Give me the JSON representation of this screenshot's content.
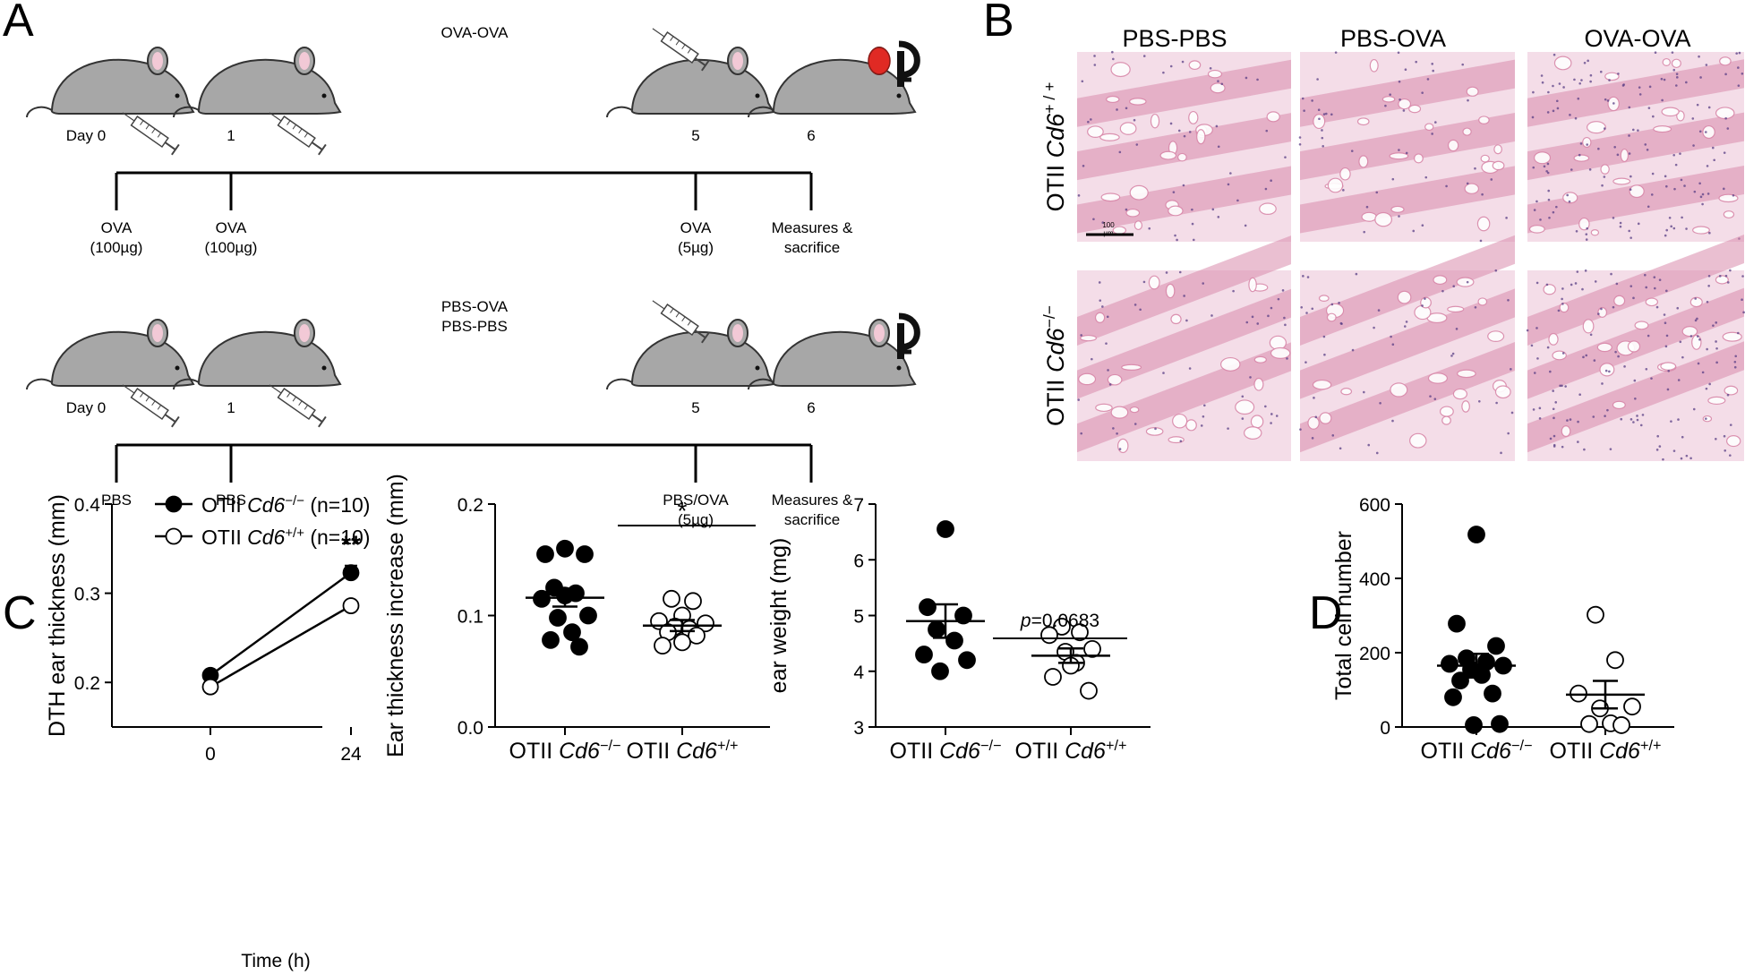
{
  "panels": {
    "a": "A",
    "b": "B",
    "c": "C",
    "d": "D"
  },
  "schematic": {
    "top": {
      "group_label": "OVA-OVA",
      "days": [
        "Day 0",
        "1",
        "5",
        "6"
      ],
      "treatments": [
        "OVA\n(100µg)",
        "OVA\n(100µg)",
        "OVA\n(5µg)",
        "Measures &\nsacrifice"
      ]
    },
    "bottom": {
      "group_label": "PBS-OVA\nPBS-PBS",
      "days": [
        "Day 0",
        "1",
        "5",
        "6"
      ],
      "treatments": [
        "PBS",
        "PBS",
        "PBS/OVA\n(5µg)",
        "Measures &\nsacrifice"
      ]
    },
    "colors": {
      "mouse": "#a7a7a7",
      "ear": "#f2c9d6",
      "inflamed_ear": "#e02a24",
      "outline": "#333333"
    }
  },
  "histology": {
    "columns": [
      "PBS-PBS",
      "PBS-OVA",
      "OVA-OVA"
    ],
    "rows": [
      {
        "prefix": "OTII ",
        "gene": "Cd6",
        "sup": "+ / +"
      },
      {
        "prefix": "OTII ",
        "gene": "Cd6",
        "sup": "−/−"
      }
    ],
    "scale_bar": "100\nµm",
    "colors": {
      "bg": "#f4dde8",
      "stain": "#d98aab",
      "nuclei": "#5a3f86"
    }
  },
  "chart_data": [
    {
      "type": "line",
      "ylabel": "DTH ear thickness (mm)",
      "xlabel": "Time (h)",
      "x": [
        0,
        24
      ],
      "xticks": [
        "0",
        "24"
      ],
      "ylim": [
        0.15,
        0.4
      ],
      "yticks": [
        0.2,
        0.3,
        0.4
      ],
      "ytick_labels": [
        "0.2",
        "0.3",
        "0.4"
      ],
      "legend": [
        {
          "prefix": "OTII ",
          "gene": "Cd6",
          "sup": "−/−",
          "suffix": " (n=10)",
          "marker": "filled"
        },
        {
          "prefix": "OTII ",
          "gene": "Cd6",
          "sup": "+/+",
          "suffix": " (n=10)",
          "marker": "open"
        }
      ],
      "series": [
        {
          "values": [
            0.208,
            0.323
          ],
          "error": [
            0,
            0.008
          ],
          "marker": "filled"
        },
        {
          "values": [
            0.195,
            0.286
          ],
          "error": [
            0,
            0.0
          ],
          "marker": "open"
        }
      ],
      "annotation": "**"
    },
    {
      "type": "scatter",
      "ylabel": "Ear thickness increase (mm)",
      "ylim": [
        0,
        0.2
      ],
      "yticks": [
        0,
        0.1,
        0.2
      ],
      "ytick_labels": [
        "0.0",
        "0.1",
        "0.2"
      ],
      "groups": [
        {
          "prefix": "OTII ",
          "gene": "Cd6",
          "sup": "−/−",
          "marker": "filled",
          "values": [
            0.16,
            0.155,
            0.155,
            0.125,
            0.12,
            0.118,
            0.115,
            0.1,
            0.098,
            0.085,
            0.078,
            0.072
          ],
          "mean": 0.116,
          "sem": 0.008
        },
        {
          "prefix": "OTII ",
          "gene": "Cd6",
          "sup": "+/+",
          "marker": "open",
          "values": [
            0.115,
            0.113,
            0.1,
            0.095,
            0.093,
            0.09,
            0.088,
            0.085,
            0.082,
            0.076,
            0.073
          ],
          "mean": 0.091,
          "sem": 0.005
        }
      ],
      "significance": "*"
    },
    {
      "type": "scatter",
      "ylabel": "ear weight (mg)",
      "ylim": [
        3,
        7
      ],
      "yticks": [
        3,
        4,
        5,
        6,
        7
      ],
      "ytick_labels": [
        "3",
        "4",
        "5",
        "6",
        "7"
      ],
      "groups": [
        {
          "prefix": "OTII ",
          "gene": "Cd6",
          "sup": "−/−",
          "marker": "filled",
          "values": [
            6.55,
            5.15,
            5.0,
            4.75,
            4.55,
            4.3,
            4.2,
            4.0
          ],
          "mean": 4.9,
          "sem": 0.3
        },
        {
          "prefix": "OTII ",
          "gene": "Cd6",
          "sup": "+/+",
          "marker": "open",
          "values": [
            4.8,
            4.7,
            4.65,
            4.4,
            4.35,
            4.15,
            4.1,
            3.9,
            3.65
          ],
          "mean": 4.28,
          "sem": 0.13
        }
      ],
      "significance_p": "p",
      "significance_value": "=0.0683"
    },
    {
      "type": "scatter",
      "ylabel": "Total cell number",
      "ylim": [
        0,
        600
      ],
      "yticks": [
        0,
        200,
        400,
        600
      ],
      "ytick_labels": [
        "0",
        "200",
        "400",
        "600"
      ],
      "groups": [
        {
          "prefix": "OTII ",
          "gene": "Cd6",
          "sup": "−/−",
          "marker": "filled",
          "values": [
            518,
            278,
            218,
            185,
            175,
            170,
            165,
            155,
            140,
            125,
            90,
            80,
            8,
            5
          ],
          "mean": 165,
          "sem": 32
        },
        {
          "prefix": "OTII ",
          "gene": "Cd6",
          "sup": "+/+",
          "marker": "open",
          "values": [
            302,
            180,
            90,
            55,
            50,
            10,
            8,
            5
          ],
          "mean": 87,
          "sem": 37
        }
      ]
    }
  ]
}
